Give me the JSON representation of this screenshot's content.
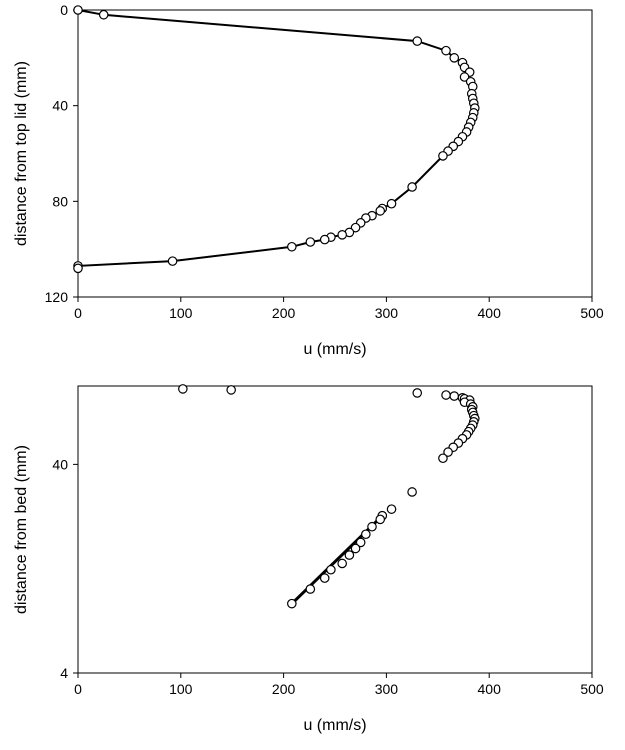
{
  "chart_data": [
    {
      "type": "line",
      "xlabel": "u (mm/s)",
      "ylabel": "distance from top lid (mm)",
      "xlim": [
        0,
        500
      ],
      "ylim": [
        0,
        120
      ],
      "y_reversed": true,
      "xticks": [
        0,
        100,
        200,
        300,
        400,
        500
      ],
      "yticks": [
        0,
        40,
        80,
        120
      ],
      "xtick_labels": [
        "0",
        "100",
        "200",
        "300",
        "400",
        "500"
      ],
      "ytick_labels": [
        "0",
        "40",
        "80",
        "120"
      ],
      "grid": false,
      "legend": "none",
      "marker": "open-circle",
      "series": [
        {
          "x": [
            0,
            25,
            330,
            358,
            366,
            374,
            376,
            381,
            376,
            382,
            384,
            383,
            384,
            385,
            386,
            385,
            384,
            382,
            380,
            378,
            374,
            370,
            365,
            360,
            355,
            325,
            305,
            296,
            294,
            286,
            280,
            275,
            270,
            264,
            257,
            246,
            240,
            226,
            208,
            92,
            0,
            0
          ],
          "y": [
            0,
            2,
            13,
            17,
            20,
            22,
            24,
            26,
            28,
            30,
            32,
            35,
            37,
            39,
            41,
            43,
            45,
            47,
            49,
            51,
            53,
            55,
            57,
            59,
            61,
            74,
            81,
            83,
            84,
            86,
            87,
            89,
            91,
            93,
            94,
            95,
            96,
            97,
            99,
            105,
            107,
            108
          ]
        }
      ]
    },
    {
      "type": "scatter",
      "xlabel": "u (mm/s)",
      "ylabel": "distance from bed (mm)",
      "xlim": [
        0,
        500
      ],
      "ylim": [
        4,
        95
      ],
      "y_scale": "log",
      "xticks": [
        0,
        100,
        200,
        300,
        400,
        500
      ],
      "yticks": [
        4,
        40
      ],
      "xtick_labels": [
        "0",
        "100",
        "200",
        "300",
        "400",
        "500"
      ],
      "ytick_labels": [
        "4",
        "40"
      ],
      "grid": false,
      "legend": "none",
      "marker": "open-circle",
      "series": [
        {
          "x": [
            102,
            149,
            330,
            358,
            366,
            374,
            376,
            381,
            376,
            382,
            384,
            383,
            384,
            385,
            386,
            385,
            384,
            382,
            380,
            378,
            374,
            370,
            365,
            360,
            355,
            325,
            305,
            296,
            294,
            286,
            280,
            275,
            270,
            264,
            257,
            246,
            240,
            226,
            208
          ],
          "y": [
            92,
            91,
            88,
            86,
            85,
            83.4,
            82.5,
            81.3,
            79.4,
            77.8,
            75.5,
            73.2,
            71,
            68.5,
            66.3,
            64,
            61.7,
            59.5,
            57.4,
            55.4,
            53.1,
            50.6,
            48.3,
            45.8,
            42.8,
            29.5,
            24.4,
            22.7,
            21.8,
            20.1,
            18.5,
            16.9,
            15.8,
            14.7,
            13.4,
            12.5,
            11.4,
            10.1,
            8.6
          ]
        }
      ],
      "fit_line": {
        "x": [
          208,
          296
        ],
        "y": [
          8.6,
          22.7
        ]
      }
    }
  ]
}
